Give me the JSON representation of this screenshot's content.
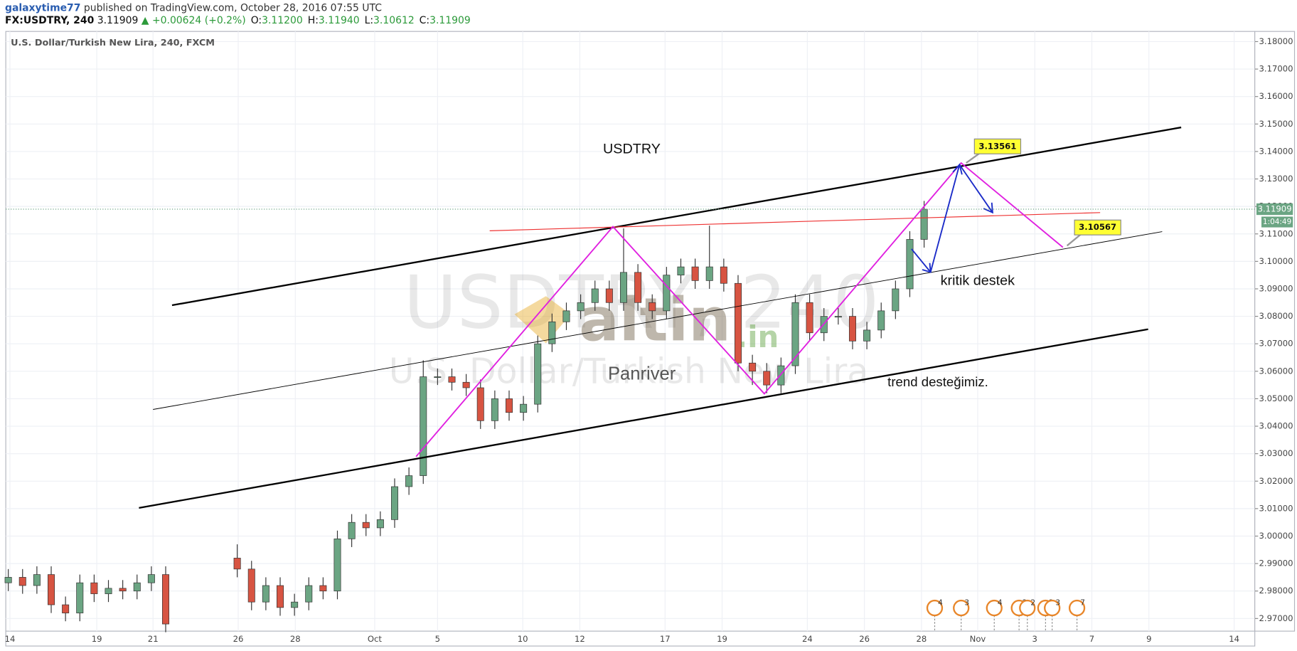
{
  "header": {
    "user": "galaxytime77",
    "published": "published on TradingView.com, October 28, 2016 07:55 UTC",
    "symbol": "FX:USDTRY, 240",
    "last": "3.11909",
    "change": "▲ +0.00624 (+0.2%)",
    "ohlc": [
      {
        "key": "O:",
        "value": "3.11200"
      },
      {
        "key": "H:",
        "value": "3.11940"
      },
      {
        "key": "L:",
        "value": "3.10612"
      },
      {
        "key": "C:",
        "value": "3.11909"
      }
    ]
  },
  "chart_data": {
    "type": "candlestick",
    "title": "U.S. Dollar/Turkish New Lira, 240, FXCM",
    "watermark": [
      "USDTRY, 240",
      "U.S. Dollar/Turkish New Lira",
      "altin",
      ".in"
    ],
    "up_color": "#6ba583",
    "down_color": "#d75442",
    "grid": true,
    "ylim": [
      2.9654,
      3.1837
    ],
    "yticks": [
      {
        "value": 2.97,
        "label": "2.97000"
      },
      {
        "value": 2.98,
        "label": "2.98000"
      },
      {
        "value": 2.99,
        "label": "2.99000"
      },
      {
        "value": 3.0,
        "label": "3.00000"
      },
      {
        "value": 3.01,
        "label": "3.01000"
      },
      {
        "value": 3.02,
        "label": "3.02000"
      },
      {
        "value": 3.03,
        "label": "3.03000"
      },
      {
        "value": 3.04,
        "label": "3.04000"
      },
      {
        "value": 3.05,
        "label": "3.05000"
      },
      {
        "value": 3.06,
        "label": "3.06000"
      },
      {
        "value": 3.07,
        "label": "3.07000"
      },
      {
        "value": 3.08,
        "label": "3.08000"
      },
      {
        "value": 3.09,
        "label": "3.09000"
      },
      {
        "value": 3.1,
        "label": "3.10000"
      },
      {
        "value": 3.11,
        "label": "3.11000"
      },
      {
        "value": 3.12,
        "label": "3.12000"
      },
      {
        "value": 3.13,
        "label": "3.13000"
      },
      {
        "value": 3.14,
        "label": "3.14000"
      },
      {
        "value": 3.15,
        "label": "3.15000"
      },
      {
        "value": 3.16,
        "label": "3.16000"
      },
      {
        "value": 3.17,
        "label": "3.17000"
      },
      {
        "value": 3.18,
        "label": "3.18000"
      }
    ],
    "xtick_labels": [
      "14",
      "19",
      "21",
      "26",
      "28",
      "Oct",
      "5",
      "10",
      "12",
      "17",
      "19",
      "24",
      "26",
      "28",
      "Nov",
      "3",
      "7",
      "9",
      "14"
    ],
    "open": [
      2.983,
      2.985,
      2.982,
      2.986,
      2.975,
      2.972,
      2.983,
      2.979,
      2.981,
      2.98,
      2.983,
      2.986,
      null,
      null,
      null,
      null,
      2.992,
      2.988,
      2.976,
      2.982,
      2.974,
      2.976,
      2.982,
      2.98,
      2.999,
      3.005,
      3.003,
      3.006,
      3.018,
      3.022,
      3.058,
      3.058,
      3.056,
      3.054,
      3.042,
      3.05,
      3.045,
      3.048,
      3.07,
      3.078,
      3.082,
      3.085,
      3.09,
      3.085,
      3.096,
      3.085,
      3.082,
      3.095,
      3.098,
      3.093,
      3.098,
      3.092,
      3.063,
      3.06,
      3.055,
      3.062,
      3.085,
      3.074,
      3.08,
      3.08,
      3.071,
      3.075,
      3.082,
      3.09,
      3.108
    ],
    "high": [
      2.988,
      2.988,
      2.989,
      2.989,
      2.978,
      2.986,
      2.986,
      2.984,
      2.984,
      2.986,
      2.989,
      2.989,
      null,
      null,
      null,
      null,
      2.997,
      2.991,
      2.985,
      2.985,
      2.979,
      2.985,
      2.985,
      3.002,
      3.008,
      3.008,
      3.009,
      3.021,
      3.025,
      3.064,
      3.061,
      3.061,
      3.059,
      3.057,
      3.053,
      3.053,
      3.051,
      3.073,
      3.081,
      3.085,
      3.088,
      3.093,
      3.093,
      3.112,
      3.099,
      3.088,
      3.098,
      3.101,
      3.101,
      3.113,
      3.101,
      3.095,
      3.066,
      3.063,
      3.065,
      3.088,
      3.088,
      3.083,
      3.083,
      3.083,
      3.078,
      3.085,
      3.093,
      3.111,
      3.122
    ],
    "low": [
      2.98,
      2.979,
      2.979,
      2.972,
      2.969,
      2.969,
      2.976,
      2.976,
      2.977,
      2.977,
      2.98,
      2.965,
      null,
      null,
      null,
      null,
      2.985,
      2.973,
      2.973,
      2.971,
      2.971,
      2.973,
      2.977,
      2.977,
      2.996,
      3.0,
      3.0,
      3.003,
      3.015,
      3.019,
      3.055,
      3.053,
      3.051,
      3.039,
      3.039,
      3.042,
      3.042,
      3.045,
      3.067,
      3.075,
      3.079,
      3.082,
      3.082,
      3.082,
      3.082,
      3.079,
      3.079,
      3.092,
      3.09,
      3.09,
      3.089,
      3.06,
      3.055,
      3.052,
      3.052,
      3.059,
      3.071,
      3.071,
      3.077,
      3.068,
      3.068,
      3.072,
      3.079,
      3.087,
      3.105
    ],
    "close": [
      2.985,
      2.982,
      2.986,
      2.975,
      2.972,
      2.983,
      2.979,
      2.981,
      2.98,
      2.983,
      2.986,
      2.968,
      null,
      null,
      null,
      null,
      2.988,
      2.976,
      2.982,
      2.974,
      2.976,
      2.982,
      2.98,
      2.999,
      3.005,
      3.003,
      3.006,
      3.018,
      3.022,
      3.058,
      3.058,
      3.056,
      3.054,
      3.042,
      3.05,
      3.045,
      3.048,
      3.07,
      3.078,
      3.082,
      3.085,
      3.09,
      3.085,
      3.096,
      3.085,
      3.082,
      3.095,
      3.098,
      3.093,
      3.098,
      3.092,
      3.063,
      3.06,
      3.055,
      3.062,
      3.085,
      3.074,
      3.08,
      3.08,
      3.071,
      3.075,
      3.082,
      3.09,
      3.108,
      3.119
    ],
    "last_price_label": "3.11909",
    "countdown": "1:04:49",
    "annotations": [
      "USDTRY",
      "kritik destek",
      "trend desteğimiz.",
      "Panriver",
      "3.13561",
      "3.10567"
    ],
    "events": [
      "4",
      "3",
      "4",
      "2",
      "2",
      "2",
      "3",
      "7"
    ]
  }
}
